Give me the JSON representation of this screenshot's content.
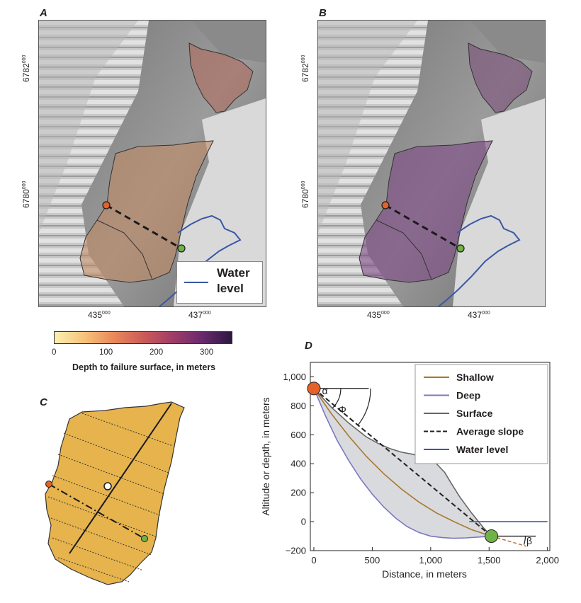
{
  "panels": {
    "a": "A",
    "b": "B",
    "c": "C",
    "d": "D"
  },
  "maps": {
    "y_labels": [
      {
        "base": "6782",
        "sup": "000"
      },
      {
        "base": "6780",
        "sup": "000"
      }
    ],
    "x_labels": [
      {
        "base": "435",
        "sup": "000"
      },
      {
        "base": "437",
        "sup": "000"
      }
    ],
    "legend": {
      "line_label_1": "Water",
      "line_label_2": "level",
      "line_color": "#3a57a6"
    }
  },
  "colorbar": {
    "title": "Depth to failure surface, in meters",
    "ticks": [
      "0",
      "100",
      "200",
      "300"
    ],
    "range": [
      0,
      350
    ],
    "colors": [
      "#fdefb0",
      "#f7c27a",
      "#e98a5b",
      "#cc5b58",
      "#9e3d66",
      "#6a2a6e",
      "#2d1740"
    ]
  },
  "marker_colors": {
    "start": "#e4622a",
    "end": "#71b246",
    "c_fill": "#e6b34d"
  },
  "chart_data": {
    "type": "line",
    "title": "",
    "xlabel": "Distance, in meters",
    "ylabel": "Altitude or depth, in meters",
    "xlim": [
      -30,
      2020
    ],
    "ylim": [
      -200,
      1100
    ],
    "x_ticks": [
      {
        "value": 0,
        "label": "0"
      },
      {
        "value": 500,
        "label": "500"
      },
      {
        "value": 1000,
        "label": "1,000"
      },
      {
        "value": 1500,
        "label": "1,500"
      },
      {
        "value": 2000,
        "label": "2,000"
      }
    ],
    "y_ticks": [
      {
        "value": -200,
        "label": "−200"
      },
      {
        "value": 0,
        "label": "0"
      },
      {
        "value": 200,
        "label": "200"
      },
      {
        "value": 400,
        "label": "400"
      },
      {
        "value": 600,
        "label": "600"
      },
      {
        "value": 800,
        "label": "800"
      },
      {
        "value": 1000,
        "label": "1,000"
      }
    ],
    "grid": false,
    "legend_position": "top-right",
    "series": [
      {
        "name": "Shallow",
        "color": "#a8782d",
        "dash": false,
        "x": [
          0,
          150,
          300,
          450,
          600,
          750,
          900,
          1050,
          1200,
          1350,
          1520
        ],
        "y": [
          920,
          745,
          590,
          450,
          330,
          225,
          135,
          60,
          0,
          -55,
          -100
        ]
      },
      {
        "name": "Deep",
        "color": "#7b76c2",
        "dash": false,
        "x": [
          0,
          100,
          200,
          300,
          400,
          500,
          600,
          700,
          800,
          900,
          1000,
          1100,
          1200,
          1300,
          1400,
          1520
        ],
        "y": [
          920,
          730,
          560,
          420,
          295,
          190,
          100,
          25,
          -35,
          -75,
          -100,
          -110,
          -115,
          -112,
          -107,
          -100
        ]
      },
      {
        "name": "Surface",
        "color": "#666666",
        "dash": false,
        "x": [
          0,
          150,
          300,
          450,
          550,
          650,
          750,
          850,
          950,
          1050,
          1120,
          1180,
          1250,
          1350,
          1450,
          1520
        ],
        "y": [
          920,
          790,
          680,
          585,
          540,
          505,
          480,
          465,
          440,
          400,
          340,
          260,
          170,
          60,
          -40,
          -100
        ]
      },
      {
        "name": "Average slope",
        "color": "#231f20",
        "dash": true,
        "x": [
          0,
          1520
        ],
        "y": [
          920,
          -100
        ]
      },
      {
        "name": "Water level",
        "color": "#3a57a6",
        "dash": false,
        "x": [
          1330,
          2000
        ],
        "y": [
          0,
          0
        ]
      }
    ],
    "annotations": [
      {
        "text": "α",
        "x": 70,
        "y": 880
      },
      {
        "text": "Φ",
        "x": 210,
        "y": 750
      },
      {
        "text": "β",
        "x": 1820,
        "y": -155
      }
    ],
    "points": [
      {
        "x": 0,
        "y": 920,
        "color": "#e4622a"
      },
      {
        "x": 1520,
        "y": -100,
        "color": "#71b246"
      }
    ],
    "ref_lines": [
      {
        "x": [
          0,
          470
        ],
        "y": [
          920,
          920
        ]
      },
      {
        "x": [
          1520,
          1900
        ],
        "y": [
          -100,
          -100
        ]
      }
    ],
    "beta_line": {
      "x": [
        1520,
        1820
      ],
      "y": [
        -100,
        -170
      ],
      "color": "#c0713a"
    }
  }
}
